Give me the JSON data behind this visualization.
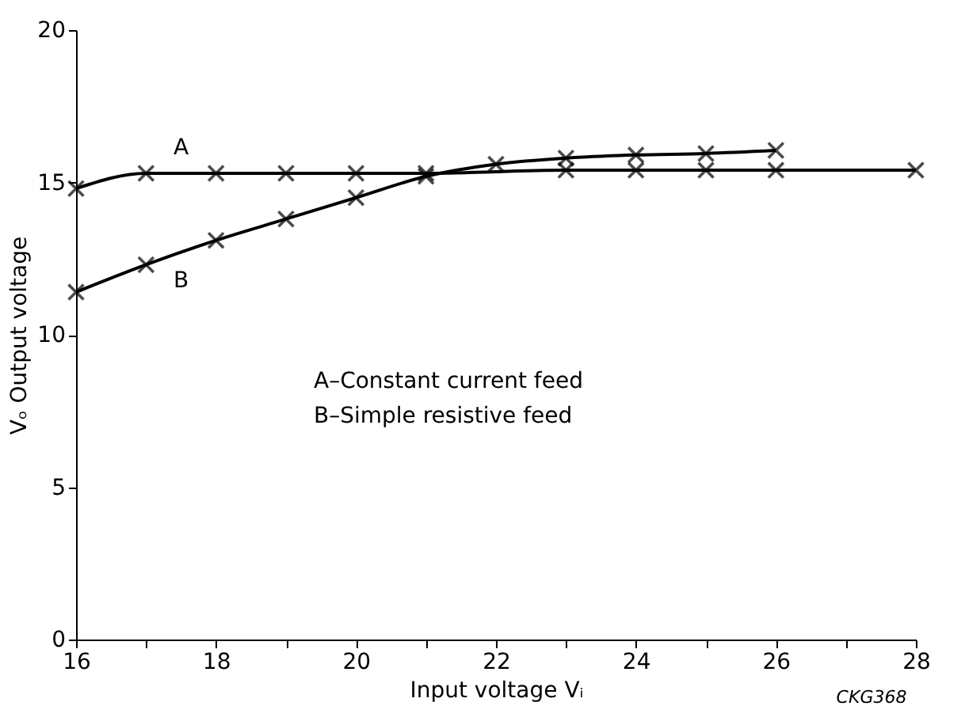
{
  "chart_data": {
    "type": "line",
    "xlabel": "Input voltage Vᵢ",
    "ylabel": "Vₒ Output voltage",
    "series": [
      {
        "name": "A",
        "color": "#000000",
        "x": [
          16,
          17,
          18,
          19,
          20,
          21,
          23,
          24,
          25,
          26,
          28
        ],
        "values": [
          14.8,
          15.3,
          15.3,
          15.3,
          15.3,
          15.3,
          15.4,
          15.4,
          15.4,
          15.4,
          15.4
        ]
      },
      {
        "name": "B",
        "color": "#000000",
        "x": [
          16,
          17,
          18,
          19,
          20,
          21,
          22,
          23,
          24,
          25,
          26
        ],
        "values": [
          11.4,
          12.3,
          13.1,
          13.8,
          14.5,
          15.2,
          15.6,
          15.8,
          15.9,
          15.95,
          16.05
        ]
      }
    ],
    "xlim": [
      16,
      28
    ],
    "ylim": [
      0,
      20
    ],
    "xticks": [
      16,
      {
        "value": 17,
        "label": null
      },
      18,
      {
        "value": 19,
        "label": null
      },
      20,
      {
        "value": 21,
        "label": null
      },
      22,
      {
        "value": 23,
        "label": null
      },
      24,
      {
        "value": 25,
        "label": null
      },
      26,
      {
        "value": 27,
        "label": null
      },
      28
    ],
    "yticks": [
      0,
      5,
      10,
      15,
      20
    ],
    "marker": "cross",
    "line_style": "solid",
    "grid": false,
    "legend": false,
    "annotations": [
      "A–Constant current feed",
      "B–Simple resistive feed",
      "CKG368"
    ]
  }
}
